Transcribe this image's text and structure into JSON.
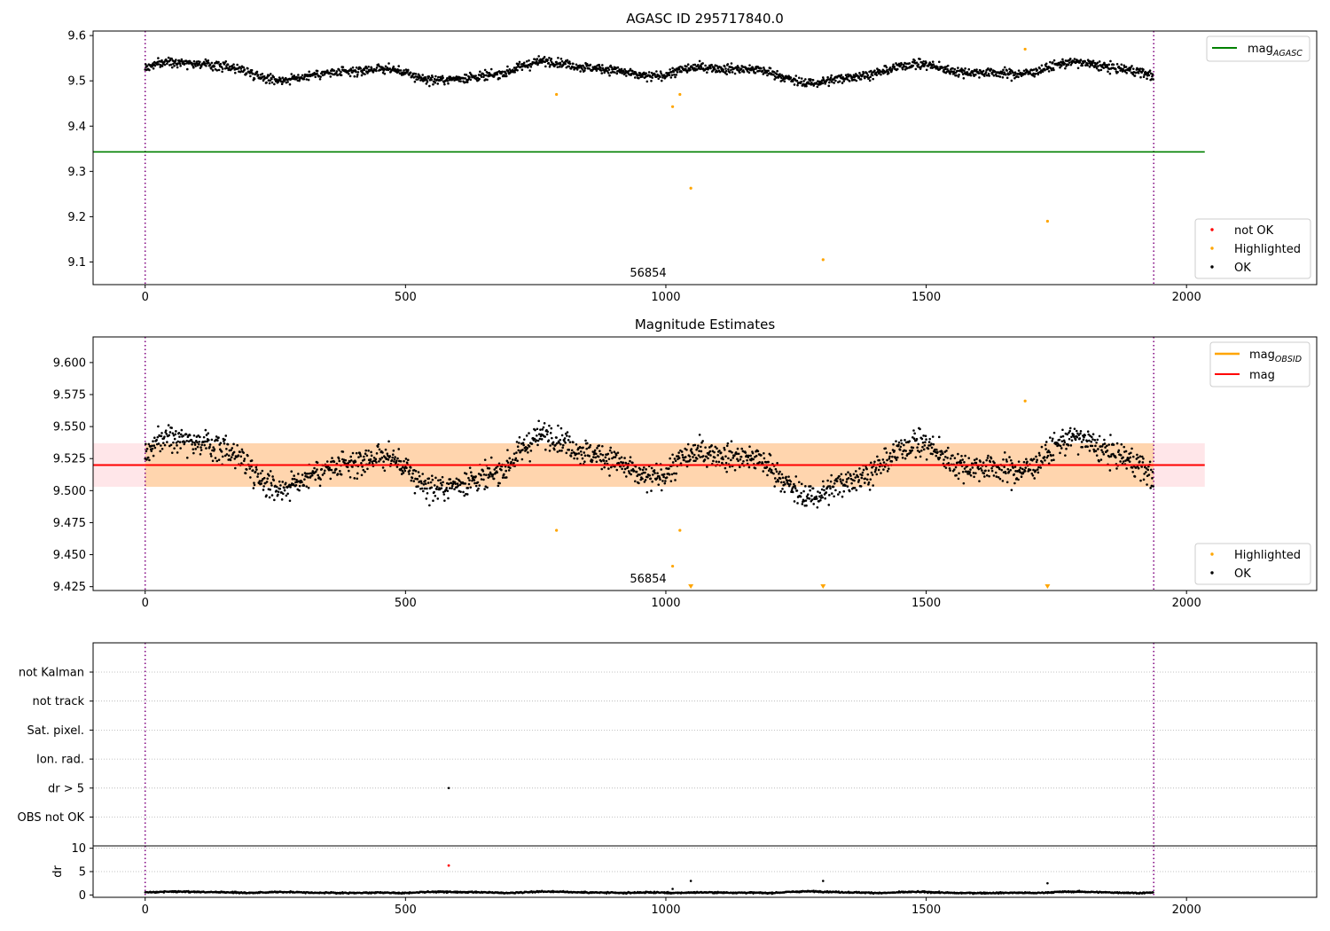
{
  "chart_data": [
    {
      "type": "scatter",
      "title": "AGASC ID 295717840.0",
      "xlim": [
        -100,
        2250
      ],
      "ylim": [
        9.05,
        9.61
      ],
      "xticks": [
        0,
        500,
        1000,
        1500,
        2000
      ],
      "yticks": [
        9.1,
        9.2,
        9.3,
        9.4,
        9.5,
        9.6
      ],
      "vertical_lines": [
        0,
        1937
      ],
      "annotations": [
        {
          "text": "56854",
          "x": 968,
          "y": 9.07
        }
      ],
      "hlines": [
        {
          "name": "mag_AGASC",
          "y": 9.343,
          "x": [
            -100,
            2035
          ],
          "color": "#008000"
        }
      ],
      "series": [
        {
          "name": "not OK",
          "color": "#ff0000",
          "points": []
        },
        {
          "name": "Highlighted",
          "color": "#ffa500",
          "points": [
            [
              790,
              9.47
            ],
            [
              1013,
              9.443
            ],
            [
              1027,
              9.47
            ],
            [
              1048,
              9.263
            ],
            [
              1302,
              9.105
            ],
            [
              1690,
              9.57
            ],
            [
              1733,
              9.19
            ]
          ]
        },
        {
          "name": "OK",
          "color": "#000000",
          "n": 1937,
          "x_range": [
            0,
            1937
          ],
          "baseline": 9.52,
          "amplitude": 0.025,
          "noise": 0.012
        }
      ],
      "legend_upper": {
        "placement": "top-right",
        "entries": [
          {
            "label": "mag",
            "sub": "AGASC",
            "color": "#008000"
          }
        ]
      },
      "legend_lower": {
        "placement": "bottom-right",
        "entries": [
          {
            "label": "not OK",
            "color": "#ff0000"
          },
          {
            "label": "Highlighted",
            "color": "#ffa500"
          },
          {
            "label": "OK",
            "color": "#000000"
          }
        ]
      }
    },
    {
      "type": "scatter",
      "title": "Magnitude Estimates",
      "xlim": [
        -100,
        2250
      ],
      "ylim": [
        9.422,
        9.62
      ],
      "xticks": [
        0,
        500,
        1000,
        1500,
        2000
      ],
      "yticks": [
        9.425,
        9.45,
        9.475,
        9.5,
        9.525,
        9.55,
        9.575,
        9.6
      ],
      "tick_labels": [
        "9.425",
        "9.450",
        "9.475",
        "9.500",
        "9.525",
        "9.550",
        "9.575",
        "9.600"
      ],
      "vertical_lines": [
        0,
        1937
      ],
      "annotations": [
        {
          "text": "56854",
          "x": 968,
          "y": 9.43
        }
      ],
      "bands": [
        {
          "name": "mag_band",
          "y": [
            9.503,
            9.537
          ],
          "x": [
            -100,
            2035
          ],
          "color": "#ffb6c1"
        },
        {
          "name": "mag_OBSID_band",
          "y": [
            9.503,
            9.537
          ],
          "x": [
            0,
            1937
          ],
          "color": "#ffa500"
        }
      ],
      "hlines": [
        {
          "name": "mag_OBSID",
          "y": 9.52,
          "x": [
            0,
            1937
          ],
          "color": "#ffa500"
        },
        {
          "name": "mag",
          "y": 9.52,
          "x": [
            -100,
            2035
          ],
          "color": "#ff0000"
        }
      ],
      "series": [
        {
          "name": "Highlighted",
          "color": "#ffa500",
          "points": [
            [
              790,
              9.469
            ],
            [
              1013,
              9.441
            ],
            [
              1027,
              9.469
            ],
            [
              1690,
              9.57
            ]
          ],
          "lower_limits": [
            1048,
            1302,
            1733
          ]
        },
        {
          "name": "OK",
          "color": "#000000",
          "n": 1937,
          "x_range": [
            0,
            1937
          ],
          "baseline": 9.52,
          "amplitude": 0.025,
          "noise": 0.012
        }
      ],
      "legend_upper": {
        "placement": "top-right",
        "entries": [
          {
            "label": "mag",
            "sub": "OBSID",
            "color": "#ffa500"
          },
          {
            "label": "mag",
            "color": "#ff0000"
          }
        ]
      },
      "legend_lower": {
        "placement": "bottom-right",
        "entries": [
          {
            "label": "Highlighted",
            "color": "#ffa500"
          },
          {
            "label": "OK",
            "color": "#000000"
          }
        ]
      }
    },
    {
      "type": "scatter",
      "xlim": [
        -100,
        2250
      ],
      "categories": [
        "not Kalman",
        "not track",
        "Sat. pixel.",
        "Ion. rad.",
        "dr > 5",
        "OBS not OK"
      ],
      "vertical_lines": [
        0,
        1937
      ],
      "flag_points": [
        {
          "category": "dr > 5",
          "x": 583
        }
      ]
    },
    {
      "type": "scatter",
      "ylabel": "dr",
      "xlim": [
        -100,
        2250
      ],
      "ylim": [
        -0.5,
        10.5
      ],
      "xticks": [
        0,
        500,
        1000,
        1500,
        2000
      ],
      "yticks": [
        0,
        5,
        10
      ],
      "vertical_lines": [
        0,
        1937
      ],
      "series": [
        {
          "name": "not OK",
          "color": "#ff0000",
          "points": [
            [
              583,
              6.3
            ]
          ]
        },
        {
          "name": "outliers",
          "color": "#000000",
          "points": [
            [
              1013,
              1.3
            ],
            [
              1048,
              3.0
            ],
            [
              1302,
              3.0
            ],
            [
              1733,
              2.5
            ]
          ]
        },
        {
          "name": "OK",
          "color": "#000000",
          "n": 1937,
          "x_range": [
            0,
            1937
          ],
          "baseline": 0.4,
          "noise": 0.25
        }
      ]
    }
  ]
}
